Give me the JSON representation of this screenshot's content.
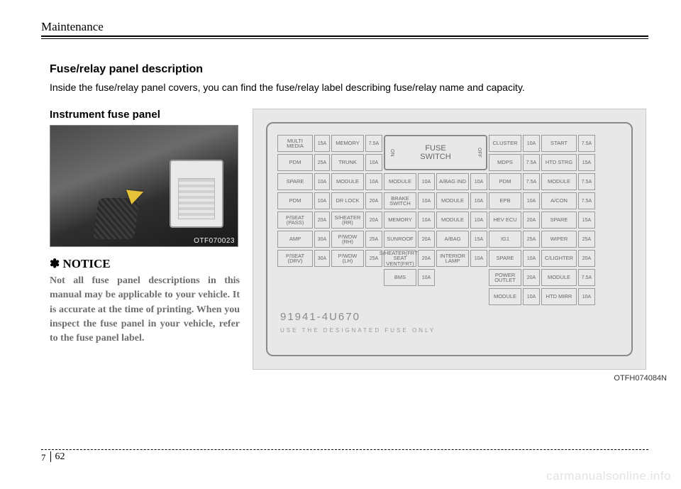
{
  "header": "Maintenance",
  "section_title": "Fuse/relay panel description",
  "intro": "Inside the fuse/relay panel covers, you can find the fuse/relay label describing fuse/relay name and capacity.",
  "sub_title": "Instrument fuse panel",
  "photo_code": "OTF070023",
  "notice_title": "✽ NOTICE",
  "notice_body": "Not all fuse panel descriptions in this manual may be applicable to your vehicle. It is accurate at the time of printing. When you inspect the fuse panel in your vehicle, refer to the fuse panel label.",
  "switch_label": "FUSE\nSWITCH",
  "switch_on": "ON",
  "switch_off": "OFF",
  "rows": [
    [
      {
        "n": "MULTI MEDIA"
      },
      {
        "a": "15A"
      },
      {
        "n": "MEMORY"
      },
      {
        "a": "7.5A"
      },
      null,
      null,
      null,
      null,
      null,
      {
        "n": "CLUSTER"
      },
      {
        "a": "10A"
      },
      {
        "n": "START"
      },
      {
        "a": "7.5A"
      }
    ],
    [
      {
        "n": "PDM"
      },
      {
        "a": "25A"
      },
      {
        "n": "TRUNK"
      },
      {
        "a": "10A"
      },
      null,
      null,
      null,
      null,
      null,
      {
        "n": "MDPS"
      },
      {
        "a": "7.5A"
      },
      {
        "n": "HTD STRG"
      },
      {
        "a": "15A"
      }
    ],
    [
      {
        "n": "SPARE"
      },
      {
        "a": "10A"
      },
      {
        "n": "MODULE"
      },
      {
        "a": "10A"
      },
      {
        "n": "MODULE"
      },
      {
        "a": "10A"
      },
      {
        "n": "A/BAG IND"
      },
      {
        "a": "10A"
      },
      {
        "n": "PDM"
      },
      {
        "a": "7.5A"
      },
      {
        "n": "MODULE"
      },
      {
        "a": "7.5A"
      }
    ],
    [
      {
        "n": "PDM"
      },
      {
        "a": "10A"
      },
      {
        "n": "DR LOCK"
      },
      {
        "a": "20A"
      },
      {
        "n": "BRAKE SWITCH"
      },
      {
        "a": "10A"
      },
      {
        "n": "MODULE"
      },
      {
        "a": "10A"
      },
      {
        "n": "EPB"
      },
      {
        "a": "10A"
      },
      {
        "n": "A/CON"
      },
      {
        "a": "7.5A"
      }
    ],
    [
      {
        "n": "P/SEAT (PASS)"
      },
      {
        "a": "20A"
      },
      {
        "n": "S/HEATER (RR)"
      },
      {
        "a": "20A"
      },
      {
        "n": "MEMORY"
      },
      {
        "a": "10A"
      },
      {
        "n": "MODULE"
      },
      {
        "a": "10A"
      },
      {
        "n": "HEV ECU"
      },
      {
        "a": "20A"
      },
      {
        "n": "SPARE"
      },
      {
        "a": "15A"
      }
    ],
    [
      {
        "n": "AMP"
      },
      {
        "a": "30A"
      },
      {
        "n": "P/WDW (RH)"
      },
      {
        "a": "25A"
      },
      {
        "n": "SUNROOF"
      },
      {
        "a": "20A"
      },
      {
        "n": "A/BAG"
      },
      {
        "a": "15A"
      },
      {
        "n": "IG1"
      },
      {
        "a": "25A"
      },
      {
        "n": "WIPER"
      },
      {
        "a": "25A"
      }
    ],
    [
      {
        "n": "P/SEAT (DRV)"
      },
      {
        "a": "30A"
      },
      {
        "n": "P/WDW (LH)"
      },
      {
        "a": "25A"
      },
      {
        "n": "S/HEATER(FRT)/ SEAT VENT(FRT)"
      },
      {
        "a": "20A"
      },
      {
        "n": "INTERIOR LAMP"
      },
      {
        "a": "10A"
      },
      {
        "n": "SPARE"
      },
      {
        "a": "10A"
      },
      {
        "n": "C/LIGHTER"
      },
      {
        "a": "20A"
      }
    ],
    [
      null,
      null,
      null,
      null,
      {
        "n": "BMS"
      },
      {
        "a": "10A"
      },
      null,
      null,
      {
        "n": "POWER OUTLET"
      },
      {
        "a": "20A"
      },
      {
        "n": "MODULE"
      },
      {
        "a": "7.5A"
      }
    ],
    [
      null,
      null,
      null,
      null,
      null,
      null,
      null,
      null,
      {
        "n": "MODULE"
      },
      {
        "a": "10A"
      },
      {
        "n": "HTD MIRR"
      },
      {
        "a": "10A"
      }
    ]
  ],
  "part_no": "91941-4U670",
  "designated": "USE THE DESIGNATED FUSE ONLY",
  "diagram_code": "OTFH074084N",
  "chapter": "7",
  "page": "62",
  "watermark": "carmanualsonline.info"
}
